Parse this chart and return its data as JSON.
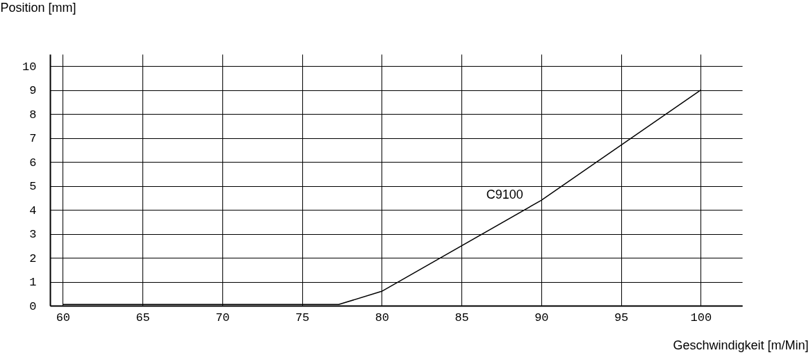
{
  "chart_data": {
    "type": "line",
    "xlabel": "Geschwindigkeit [m/Min]",
    "ylabel": "Position [mm]",
    "x": [
      60,
      77.3,
      80,
      90,
      100
    ],
    "series": [
      {
        "name": "C9100",
        "color": "#000000",
        "values": [
          0.05,
          0.05,
          0.6,
          4.4,
          9
        ]
      }
    ],
    "xlim": [
      59.2,
      102.6
    ],
    "xticks": [
      60,
      65,
      70,
      75,
      80,
      85,
      90,
      95,
      100
    ],
    "ylim": [
      0,
      10.5
    ],
    "yticks": [
      0,
      1,
      2,
      3,
      4,
      5,
      6,
      7,
      8,
      9,
      10
    ],
    "grid": true,
    "marker": "none",
    "line_style": "solid"
  }
}
